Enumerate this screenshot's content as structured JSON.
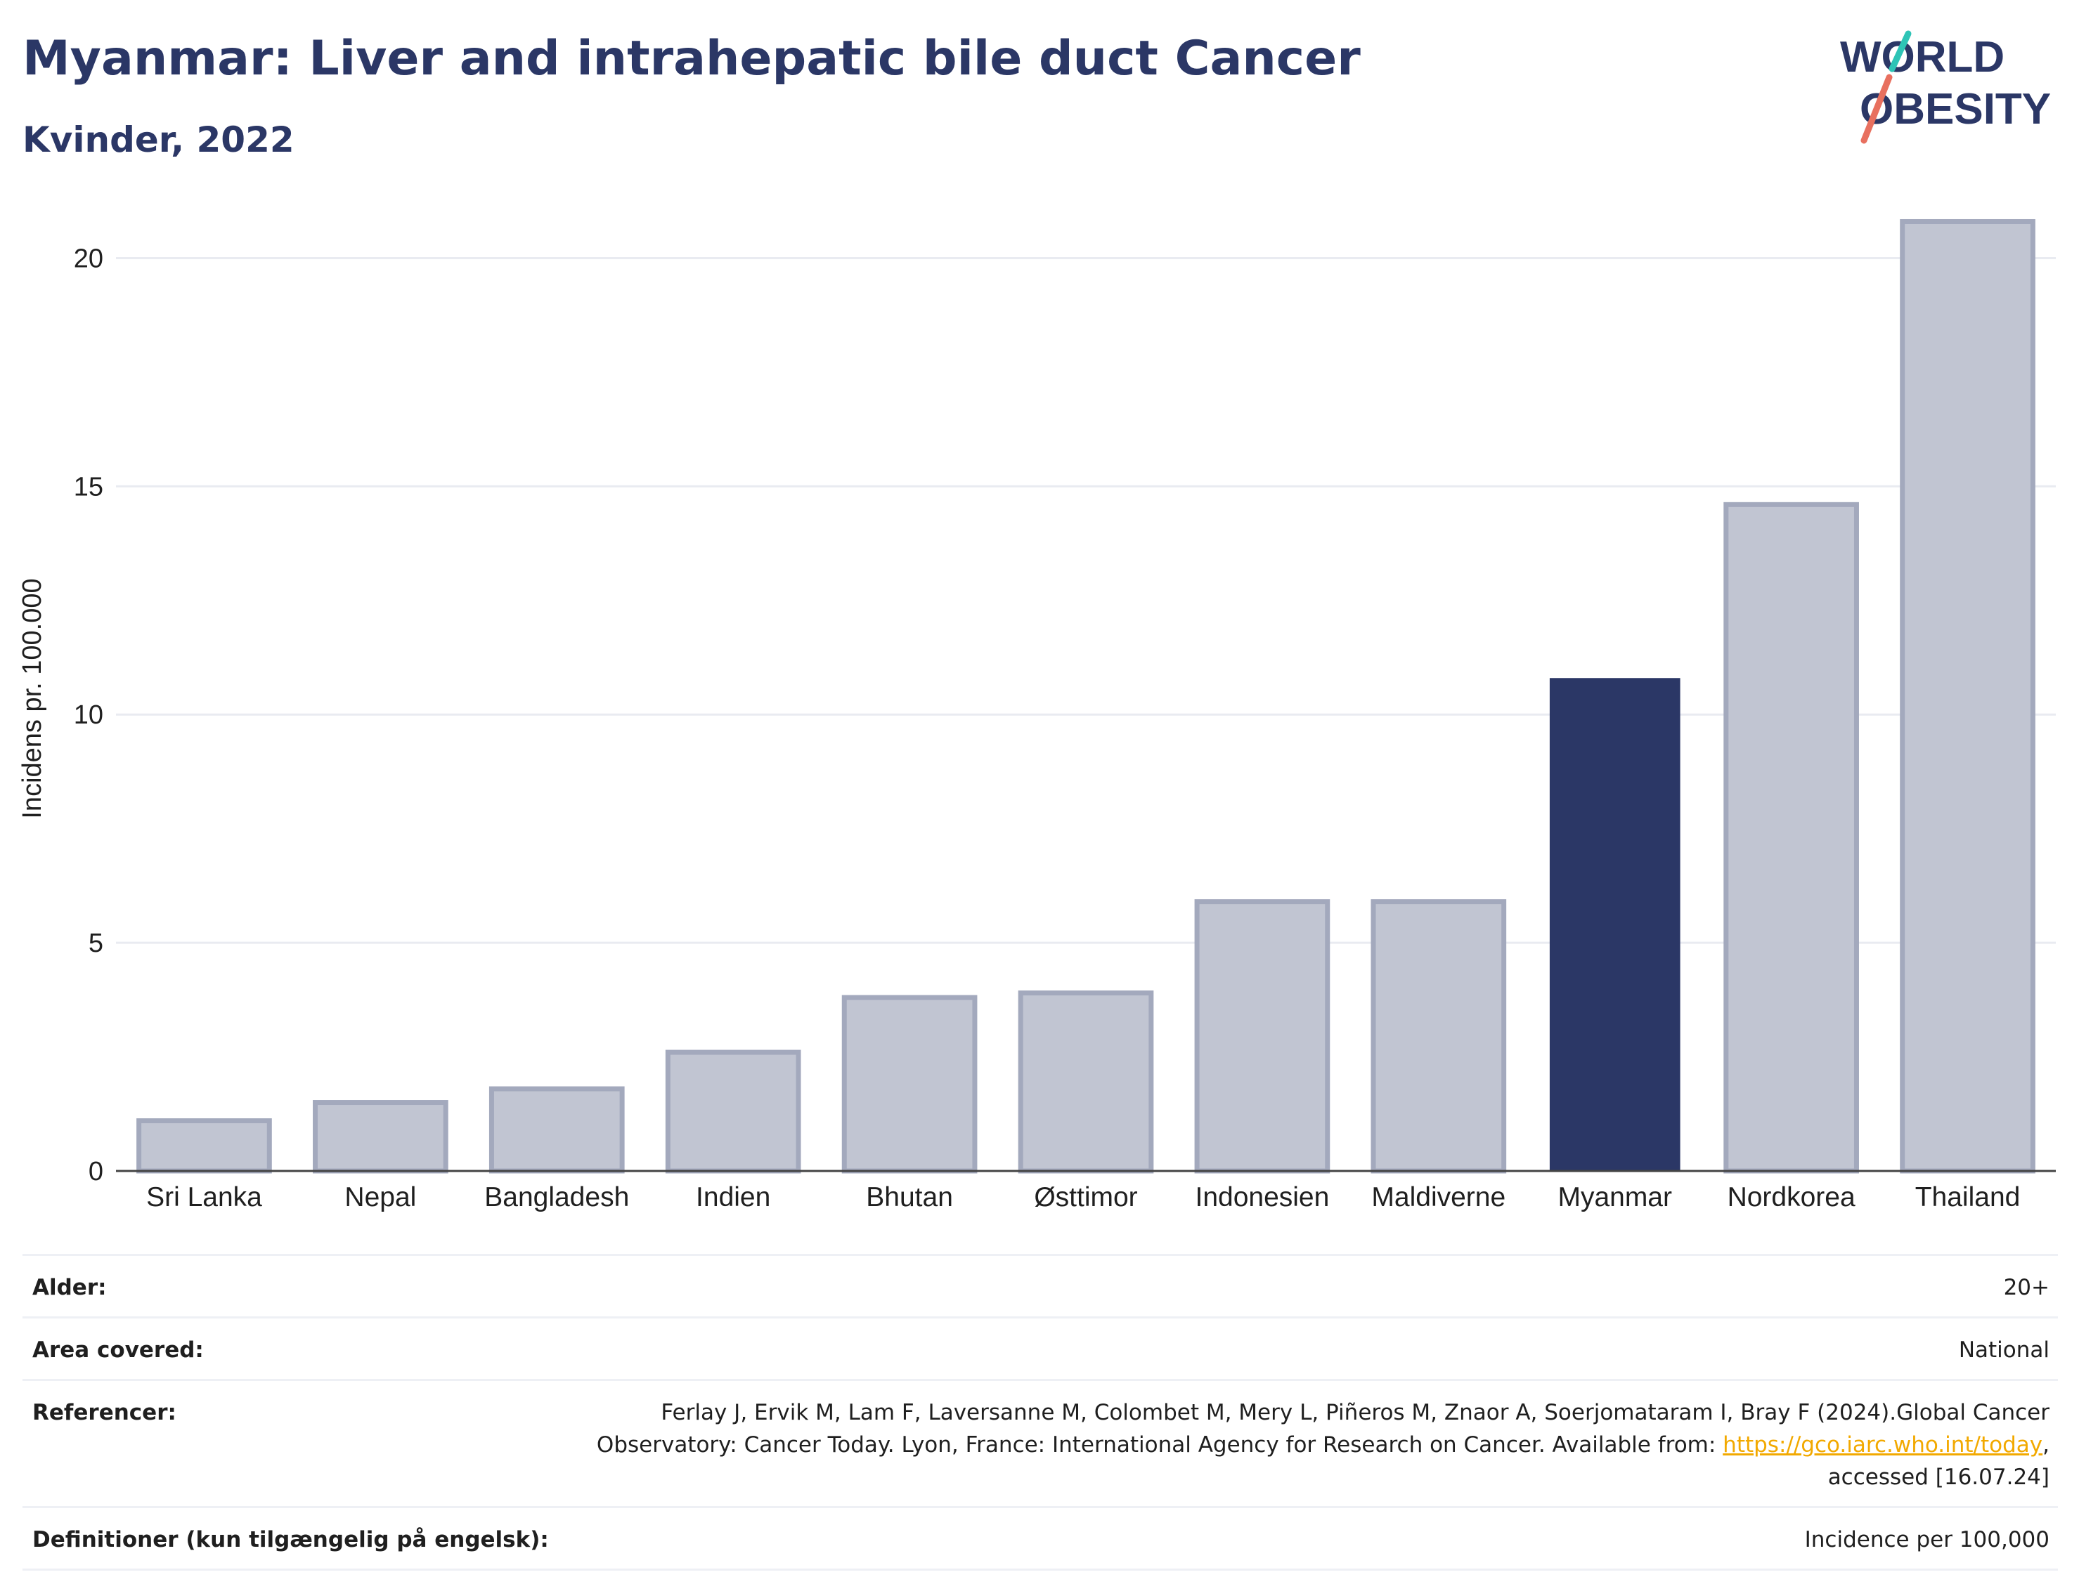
{
  "header": {
    "title": "Myanmar: Liver and intrahepatic bile duct Cancer",
    "subtitle": "Kvinder, 2022"
  },
  "logo": {
    "line1": "WORLD",
    "line2": "OBESITY"
  },
  "colors": {
    "title": "#2b3766",
    "highlight_bar": "#2b3766",
    "other_bar_fill": "#c1c5d2",
    "other_bar_stroke": "#a3a9bd",
    "logo_teal": "#2ec4b6",
    "logo_coral": "#e8705f",
    "link": "#f2a900"
  },
  "chart_data": {
    "type": "bar",
    "categories": [
      "Sri Lanka",
      "Nepal",
      "Bangladesh",
      "Indien",
      "Bhutan",
      "Østtimor",
      "Indonesien",
      "Maldiverne",
      "Myanmar",
      "Nordkorea",
      "Thailand"
    ],
    "values": [
      1.1,
      1.5,
      1.8,
      2.6,
      3.8,
      3.9,
      5.9,
      5.9,
      10.8,
      14.6,
      20.8
    ],
    "highlight": "Myanmar",
    "title": "Myanmar: Liver and intrahepatic bile duct Cancer",
    "subtitle": "Kvinder, 2022",
    "xlabel": "",
    "ylabel": "Incidens pr. 100.000",
    "ylim": [
      0,
      21.5
    ],
    "yticks": [
      0,
      5,
      10,
      15,
      20
    ],
    "grid": true,
    "legend": "none"
  },
  "info": {
    "rows": [
      {
        "label": "Alder:",
        "value": "20+"
      },
      {
        "label": "Area covered:",
        "value": "National"
      },
      {
        "label": "Referencer:",
        "value_before": "Ferlay J, Ervik M, Lam F, Laversanne M, Colombet M, Mery L, Piñeros M, Znaor A, Soerjomataram I, Bray F (2024).Global Cancer Observatory: Cancer Today. Lyon, France: International Agency for Research on Cancer. Available from: ",
        "link": "https://gco.iarc.who.int/today",
        "value_after": ", accessed [16.07.24]"
      },
      {
        "label": "Definitioner (kun tilgængelig på engelsk):",
        "value": "Incidence per 100,000"
      }
    ]
  }
}
